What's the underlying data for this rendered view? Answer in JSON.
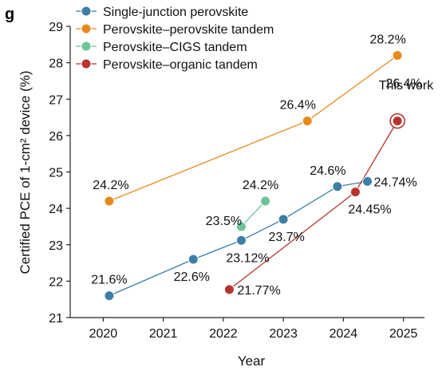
{
  "panel_label": "g",
  "chart_data": {
    "type": "line",
    "xlabel": "Year",
    "ylabel": "Certified PCE of 1-cm² device (%)",
    "xlim": [
      2019.45,
      2025.35
    ],
    "ylim": [
      21,
      29
    ],
    "xticks": [
      2020,
      2021,
      2022,
      2023,
      2024,
      2025
    ],
    "yticks": [
      21,
      22,
      23,
      24,
      25,
      26,
      27,
      28,
      29
    ],
    "grid": false,
    "legend_position": "top-left",
    "series": [
      {
        "name": "Single-junction perovskite",
        "color": "#3d7ea6",
        "points": [
          {
            "x": 2020.1,
            "y": 21.6,
            "label": "21.6%"
          },
          {
            "x": 2021.5,
            "y": 22.6,
            "label": "22.6%"
          },
          {
            "x": 2022.3,
            "y": 23.12,
            "label": "23.12%"
          },
          {
            "x": 2023.0,
            "y": 23.7,
            "label": "23.7%"
          },
          {
            "x": 2023.9,
            "y": 24.6,
            "label": "24.6%"
          },
          {
            "x": 2024.4,
            "y": 24.74,
            "label": "24.74%"
          }
        ]
      },
      {
        "name": "Perovskite–perovskite tandem",
        "color": "#e8891b",
        "points": [
          {
            "x": 2020.1,
            "y": 24.2,
            "label": "24.2%"
          },
          {
            "x": 2023.4,
            "y": 26.4,
            "label": "26.4%"
          },
          {
            "x": 2024.9,
            "y": 28.2,
            "label": "28.2%"
          }
        ]
      },
      {
        "name": "Perovskite–CIGS tandem",
        "color": "#6cc49a",
        "points": [
          {
            "x": 2022.3,
            "y": 23.5,
            "label": "23.5%"
          },
          {
            "x": 2022.7,
            "y": 24.2,
            "label": "24.2%"
          }
        ]
      },
      {
        "name": "Perovskite–organic tandem",
        "color": "#b7342b",
        "points": [
          {
            "x": 2022.1,
            "y": 21.77,
            "label": "21.77%"
          },
          {
            "x": 2024.2,
            "y": 24.45,
            "label": "24.45%"
          },
          {
            "x": 2024.9,
            "y": 26.4,
            "label": "26.4%",
            "highlight": true
          }
        ]
      }
    ],
    "annotations": [
      {
        "text": "This work"
      }
    ]
  }
}
